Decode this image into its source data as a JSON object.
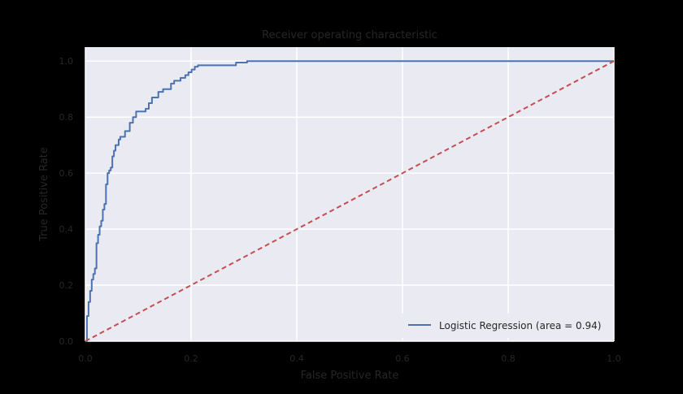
{
  "chart_data": {
    "type": "line",
    "title": "Receiver operating characteristic",
    "xlabel": "False Positive Rate",
    "ylabel": "True Positive Rate",
    "xlim": [
      0.0,
      1.0
    ],
    "ylim": [
      0.0,
      1.05
    ],
    "x_ticks": [
      0.0,
      0.2,
      0.4,
      0.6,
      0.8,
      1.0
    ],
    "x_tick_labels": [
      "0.0",
      "0.2",
      "0.4",
      "0.6",
      "0.8",
      "1.0"
    ],
    "y_ticks": [
      0.0,
      0.2,
      0.4,
      0.6,
      0.8,
      1.0
    ],
    "y_tick_labels": [
      "0.0",
      "0.2",
      "0.4",
      "0.6",
      "0.8",
      "1.0"
    ],
    "grid": true,
    "legend_position": "lower-right",
    "series": [
      {
        "name": "Logistic Regression (area = 0.94)",
        "color": "#4c72b0",
        "style": "solid",
        "x": [
          0.0,
          0.003,
          0.003,
          0.006,
          0.006,
          0.009,
          0.009,
          0.012,
          0.012,
          0.015,
          0.015,
          0.018,
          0.018,
          0.021,
          0.021,
          0.024,
          0.024,
          0.027,
          0.027,
          0.03,
          0.03,
          0.033,
          0.033,
          0.036,
          0.036,
          0.039,
          0.039,
          0.042,
          0.042,
          0.045,
          0.045,
          0.048,
          0.048,
          0.051,
          0.051,
          0.054,
          0.054,
          0.057,
          0.057,
          0.06,
          0.06,
          0.063,
          0.063,
          0.066,
          0.066,
          0.069,
          0.069,
          0.075,
          0.075,
          0.084,
          0.084,
          0.09,
          0.09,
          0.096,
          0.096,
          0.105,
          0.105,
          0.114,
          0.114,
          0.12,
          0.12,
          0.126,
          0.126,
          0.132,
          0.132,
          0.138,
          0.138,
          0.147,
          0.147,
          0.156,
          0.156,
          0.162,
          0.162,
          0.168,
          0.168,
          0.18,
          0.18,
          0.189,
          0.189,
          0.195,
          0.195,
          0.201,
          0.201,
          0.207,
          0.207,
          0.213,
          0.213,
          0.285,
          0.285,
          0.306,
          0.306,
          1.0
        ],
        "y": [
          0.0,
          0.0,
          0.09,
          0.09,
          0.14,
          0.14,
          0.18,
          0.18,
          0.22,
          0.22,
          0.24,
          0.24,
          0.26,
          0.26,
          0.35,
          0.35,
          0.38,
          0.38,
          0.41,
          0.41,
          0.43,
          0.43,
          0.47,
          0.47,
          0.49,
          0.49,
          0.56,
          0.56,
          0.6,
          0.6,
          0.61,
          0.61,
          0.62,
          0.62,
          0.66,
          0.66,
          0.68,
          0.68,
          0.7,
          0.7,
          0.7,
          0.7,
          0.72,
          0.72,
          0.73,
          0.73,
          0.73,
          0.73,
          0.75,
          0.75,
          0.78,
          0.78,
          0.8,
          0.8,
          0.82,
          0.82,
          0.82,
          0.82,
          0.83,
          0.83,
          0.85,
          0.85,
          0.87,
          0.87,
          0.87,
          0.87,
          0.89,
          0.89,
          0.9,
          0.9,
          0.9,
          0.9,
          0.92,
          0.92,
          0.93,
          0.93,
          0.94,
          0.94,
          0.95,
          0.95,
          0.96,
          0.96,
          0.97,
          0.97,
          0.98,
          0.98,
          0.985,
          0.985,
          0.995,
          0.995,
          1.0,
          1.0
        ]
      },
      {
        "name": "",
        "color": "#c44e52",
        "style": "dashed",
        "x": [
          0.0,
          1.0
        ],
        "y": [
          0.0,
          1.0
        ]
      }
    ]
  },
  "colors": {
    "background": "#000000",
    "plot_area": "#eaeaf2",
    "grid": "#ffffff",
    "text": "#262626"
  }
}
